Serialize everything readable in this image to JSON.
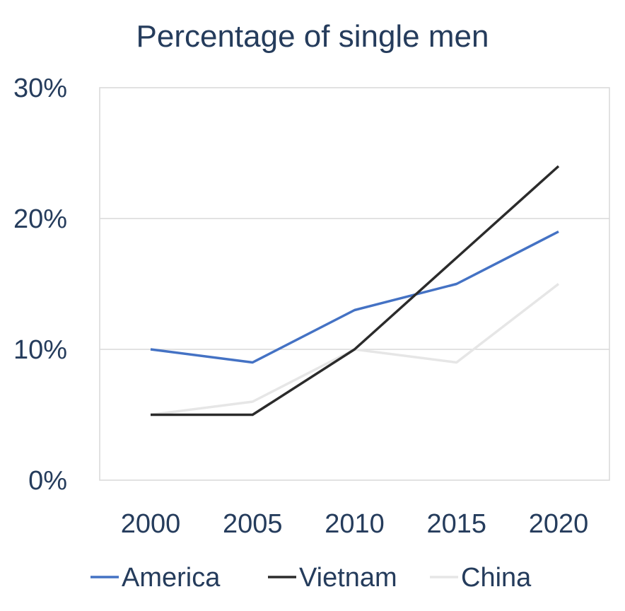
{
  "chart_data": {
    "type": "line",
    "title": "Percentage of single men",
    "xlabel": "",
    "ylabel": "",
    "categories": [
      "2000",
      "2005",
      "2010",
      "2015",
      "2020"
    ],
    "y_ticks": [
      "0%",
      "10%",
      "20%",
      "30%"
    ],
    "y_tick_values": [
      0,
      10,
      20,
      30
    ],
    "ylim": [
      0,
      30
    ],
    "grid": true,
    "legend_position": "bottom",
    "series": [
      {
        "name": "America",
        "color": "#4472c4",
        "values": [
          10,
          9,
          13,
          15,
          19
        ]
      },
      {
        "name": "Vietnam",
        "color": "#2b2b2b",
        "values": [
          5,
          5,
          10,
          17,
          24
        ]
      },
      {
        "name": "China",
        "color": "#e6e6e6",
        "values": [
          5,
          6,
          10,
          9,
          15
        ]
      }
    ]
  }
}
